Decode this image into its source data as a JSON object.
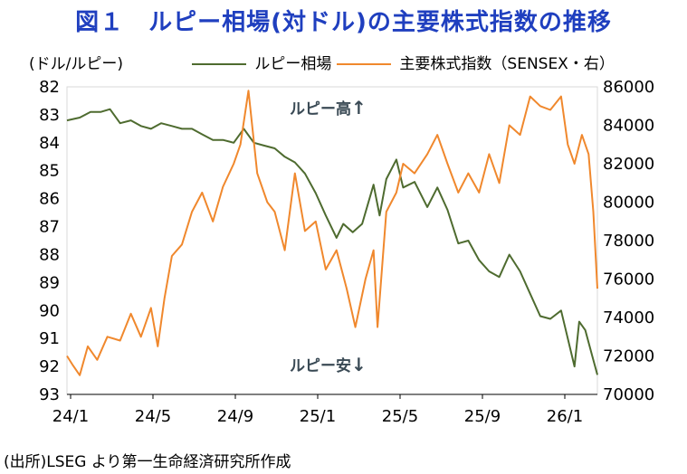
{
  "title": "図１　ルピー相場(対ドル)の主要株式指数の推移",
  "source": "(出所)LSEG より第一生命経済研究所作成",
  "chart_data": {
    "type": "line",
    "left_unit": "(ドル/ルピー)",
    "x": {
      "tick_labels": [
        "24/1",
        "24/5",
        "24/9",
        "25/1",
        "25/5",
        "25/9",
        "26/1"
      ],
      "start": "2024-01-01",
      "end": "2026-02-28"
    },
    "y_left": {
      "min": 82,
      "max": 93,
      "inverted": true,
      "ticks": [
        82,
        83,
        84,
        85,
        86,
        87,
        88,
        89,
        90,
        91,
        92,
        93
      ]
    },
    "y_right": {
      "min": 70000,
      "max": 86000,
      "ticks": [
        70000,
        72000,
        74000,
        76000,
        78000,
        80000,
        82000,
        84000,
        86000
      ]
    },
    "annotations": {
      "up": "ルピー高",
      "down": "ルピー安",
      "up_arrow": "↑",
      "down_arrow": "↓"
    },
    "series": [
      {
        "name": "ルピー相場",
        "axis": "left",
        "color": "#4e6b2f",
        "points": [
          [
            "2024-01-01",
            83.2
          ],
          [
            "2024-01-20",
            83.1
          ],
          [
            "2024-02-05",
            82.9
          ],
          [
            "2024-02-20",
            82.9
          ],
          [
            "2024-03-05",
            82.8
          ],
          [
            "2024-03-20",
            83.3
          ],
          [
            "2024-04-05",
            83.2
          ],
          [
            "2024-04-20",
            83.4
          ],
          [
            "2024-05-05",
            83.5
          ],
          [
            "2024-05-20",
            83.3
          ],
          [
            "2024-06-05",
            83.4
          ],
          [
            "2024-06-20",
            83.5
          ],
          [
            "2024-07-05",
            83.5
          ],
          [
            "2024-07-20",
            83.7
          ],
          [
            "2024-08-05",
            83.9
          ],
          [
            "2024-08-20",
            83.9
          ],
          [
            "2024-09-05",
            84.0
          ],
          [
            "2024-09-20",
            83.5
          ],
          [
            "2024-10-05",
            84.0
          ],
          [
            "2024-10-20",
            84.1
          ],
          [
            "2024-11-05",
            84.2
          ],
          [
            "2024-11-20",
            84.5
          ],
          [
            "2024-12-05",
            84.7
          ],
          [
            "2024-12-20",
            85.1
          ],
          [
            "2025-01-05",
            85.8
          ],
          [
            "2025-01-20",
            86.6
          ],
          [
            "2025-02-05",
            87.4
          ],
          [
            "2025-02-15",
            86.9
          ],
          [
            "2025-03-01",
            87.2
          ],
          [
            "2025-03-15",
            86.9
          ],
          [
            "2025-04-01",
            85.5
          ],
          [
            "2025-04-10",
            86.6
          ],
          [
            "2025-04-20",
            85.3
          ],
          [
            "2025-05-05",
            84.6
          ],
          [
            "2025-05-15",
            85.6
          ],
          [
            "2025-06-01",
            85.4
          ],
          [
            "2025-06-20",
            86.3
          ],
          [
            "2025-07-05",
            85.6
          ],
          [
            "2025-07-20",
            86.4
          ],
          [
            "2025-08-05",
            87.6
          ],
          [
            "2025-08-20",
            87.5
          ],
          [
            "2025-09-05",
            88.2
          ],
          [
            "2025-09-20",
            88.6
          ],
          [
            "2025-10-05",
            88.8
          ],
          [
            "2025-10-20",
            88.0
          ],
          [
            "2025-11-05",
            88.6
          ],
          [
            "2025-11-20",
            89.4
          ],
          [
            "2025-12-05",
            90.2
          ],
          [
            "2025-12-20",
            90.3
          ],
          [
            "2026-01-05",
            90.0
          ],
          [
            "2026-01-15",
            91.0
          ],
          [
            "2026-01-25",
            92.0
          ],
          [
            "2026-02-01",
            90.4
          ],
          [
            "2026-02-10",
            90.7
          ],
          [
            "2026-02-20",
            91.6
          ],
          [
            "2026-02-28",
            92.3
          ]
        ]
      },
      {
        "name": "主要株式指数（SENSEX・右）",
        "axis": "right",
        "color": "#f0882d",
        "points": [
          [
            "2024-01-01",
            72000
          ],
          [
            "2024-01-10",
            71500
          ],
          [
            "2024-01-20",
            71000
          ],
          [
            "2024-02-01",
            72500
          ],
          [
            "2024-02-15",
            71800
          ],
          [
            "2024-03-01",
            73000
          ],
          [
            "2024-03-20",
            72800
          ],
          [
            "2024-04-05",
            74200
          ],
          [
            "2024-04-20",
            73000
          ],
          [
            "2024-05-05",
            74500
          ],
          [
            "2024-05-15",
            72500
          ],
          [
            "2024-05-25",
            75000
          ],
          [
            "2024-06-05",
            77200
          ],
          [
            "2024-06-20",
            77800
          ],
          [
            "2024-07-05",
            79500
          ],
          [
            "2024-07-20",
            80500
          ],
          [
            "2024-08-05",
            79000
          ],
          [
            "2024-08-20",
            80800
          ],
          [
            "2024-09-05",
            82000
          ],
          [
            "2024-09-15",
            83000
          ],
          [
            "2024-09-27",
            85800
          ],
          [
            "2024-10-10",
            81500
          ],
          [
            "2024-10-25",
            80000
          ],
          [
            "2024-11-05",
            79500
          ],
          [
            "2024-11-20",
            77500
          ],
          [
            "2024-12-05",
            81500
          ],
          [
            "2024-12-20",
            78500
          ],
          [
            "2025-01-05",
            79000
          ],
          [
            "2025-01-20",
            76500
          ],
          [
            "2025-02-05",
            77500
          ],
          [
            "2025-02-20",
            75500
          ],
          [
            "2025-03-05",
            73500
          ],
          [
            "2025-03-20",
            76000
          ],
          [
            "2025-04-01",
            77500
          ],
          [
            "2025-04-07",
            73500
          ],
          [
            "2025-04-20",
            79500
          ],
          [
            "2025-05-05",
            80500
          ],
          [
            "2025-05-15",
            82000
          ],
          [
            "2025-06-01",
            81500
          ],
          [
            "2025-06-20",
            82500
          ],
          [
            "2025-07-05",
            83500
          ],
          [
            "2025-07-20",
            82000
          ],
          [
            "2025-08-05",
            80500
          ],
          [
            "2025-08-20",
            81500
          ],
          [
            "2025-09-05",
            80500
          ],
          [
            "2025-09-20",
            82500
          ],
          [
            "2025-10-05",
            81000
          ],
          [
            "2025-10-20",
            84000
          ],
          [
            "2025-11-05",
            83500
          ],
          [
            "2025-11-20",
            85500
          ],
          [
            "2025-12-05",
            85000
          ],
          [
            "2025-12-20",
            84800
          ],
          [
            "2026-01-05",
            85500
          ],
          [
            "2026-01-15",
            83000
          ],
          [
            "2026-01-25",
            82000
          ],
          [
            "2026-02-05",
            83500
          ],
          [
            "2026-02-15",
            82500
          ],
          [
            "2026-02-22",
            79500
          ],
          [
            "2026-02-28",
            75500
          ]
        ]
      }
    ]
  }
}
